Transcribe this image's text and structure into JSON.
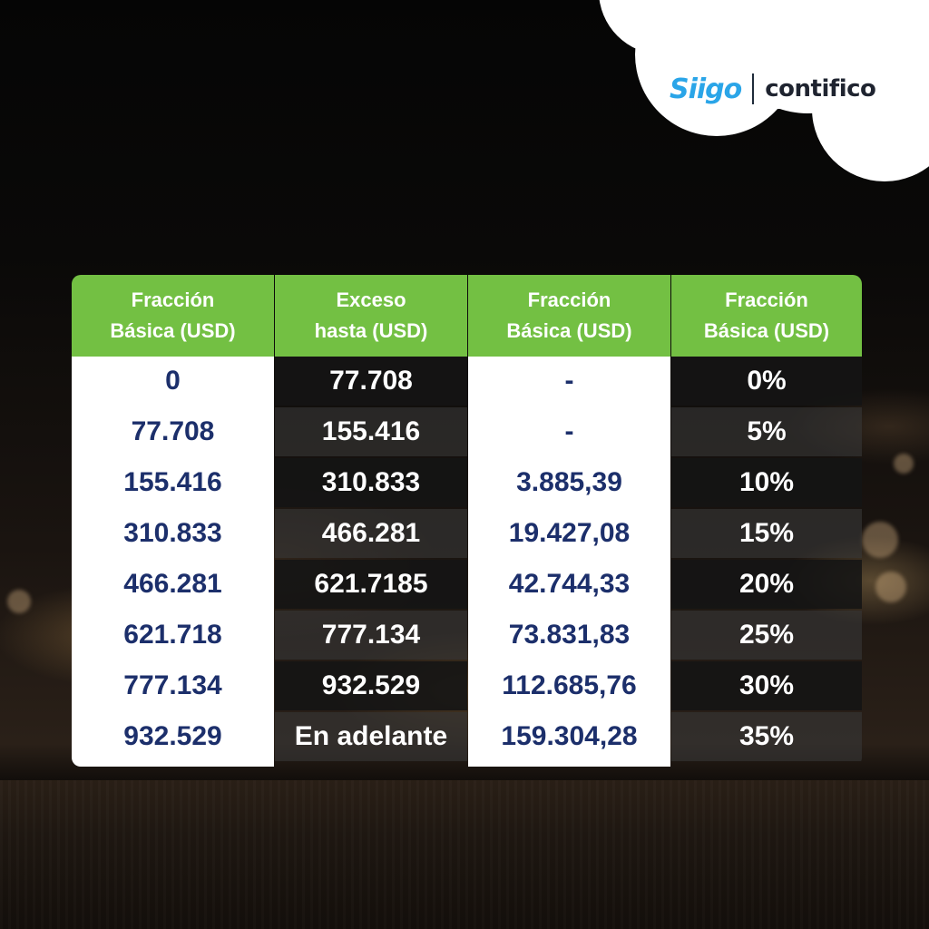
{
  "brand": {
    "siigo": "Siigo",
    "contifico": "contifico",
    "color": "#2aa5e8"
  },
  "colors": {
    "header_green": "#73c043",
    "navy_text": "#1c2f6b"
  },
  "table": {
    "headers": [
      [
        "Fracción",
        "Básica (USD)"
      ],
      [
        "Exceso",
        "hasta (USD)"
      ],
      [
        "Fracción",
        "Básica (USD)"
      ],
      [
        "Fracción",
        "Básica (USD)"
      ]
    ],
    "rows": [
      [
        "0",
        "77.708",
        "-",
        "0%"
      ],
      [
        "77.708",
        "155.416",
        "-",
        "5%"
      ],
      [
        "155.416",
        "310.833",
        "3.885,39",
        "10%"
      ],
      [
        "310.833",
        "466.281",
        "19.427,08",
        "15%"
      ],
      [
        "466.281",
        "621.7185",
        "42.744,33",
        "20%"
      ],
      [
        "621.718",
        "777.134",
        "73.831,83",
        "25%"
      ],
      [
        "777.134",
        "932.529",
        "112.685,76",
        "30%"
      ],
      [
        "932.529",
        "En adelante",
        "159.304,28",
        "35%"
      ]
    ]
  }
}
